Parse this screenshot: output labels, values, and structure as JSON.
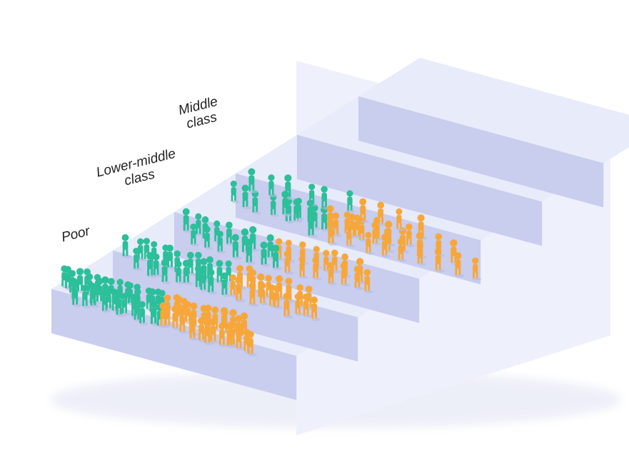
{
  "labels": {
    "poor": "Poor",
    "lower_middle": "Lower-middle\nclass",
    "middle": "Middle\nclass"
  },
  "colors": {
    "group_a": "#2bbf9a",
    "group_b": "#f7a73a",
    "stair_top": "#e8ebf9",
    "stair_front": "#c9cdee",
    "stair_side": "#eef0fb"
  },
  "steps": 6,
  "figure_icon": "person-figure-icon"
}
